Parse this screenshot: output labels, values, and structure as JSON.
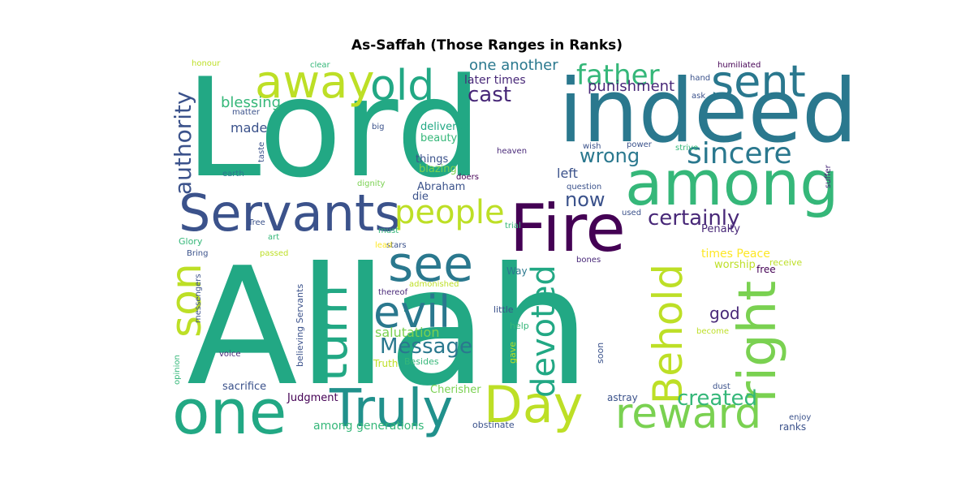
{
  "title": "As-Saffah (Those Ranges in Ranks)",
  "colors": {
    "background": "#ffffff",
    "palette": "viridis"
  },
  "words": [
    {
      "text": "Allah",
      "color": "#22a884"
    },
    {
      "text": "Lord",
      "color": "#22a884"
    },
    {
      "text": "indeed",
      "color": "#2a788e"
    },
    {
      "text": "among",
      "color": "#35b779"
    },
    {
      "text": "Servants",
      "color": "#3b528b"
    },
    {
      "text": "Fire",
      "color": "#440154"
    },
    {
      "text": "right",
      "color": "#7ad151"
    },
    {
      "text": "one",
      "color": "#22a884"
    },
    {
      "text": "Truly",
      "color": "#21918c"
    },
    {
      "text": "Day",
      "color": "#bddf26"
    },
    {
      "text": "reward",
      "color": "#7ad151"
    },
    {
      "text": "Behold",
      "color": "#bddf26"
    },
    {
      "text": "away",
      "color": "#bddf26"
    },
    {
      "text": "old",
      "color": "#22a884"
    },
    {
      "text": "sent",
      "color": "#2a788e"
    },
    {
      "text": "son",
      "color": "#bddf26"
    },
    {
      "text": "see",
      "color": "#2a788e"
    },
    {
      "text": "turn",
      "color": "#22a884"
    },
    {
      "text": "evil",
      "color": "#2a788e"
    },
    {
      "text": "people",
      "color": "#bddf26"
    },
    {
      "text": "devoted",
      "color": "#22a884"
    },
    {
      "text": "sincere",
      "color": "#2a788e"
    },
    {
      "text": "father",
      "color": "#35b779"
    },
    {
      "text": "authority",
      "color": "#3b528b"
    },
    {
      "text": "certainly",
      "color": "#482878"
    },
    {
      "text": "created",
      "color": "#35b779"
    },
    {
      "text": "Message",
      "color": "#2a788e"
    },
    {
      "text": "cast",
      "color": "#482878"
    },
    {
      "text": "wrong",
      "color": "#2a788e"
    },
    {
      "text": "now",
      "color": "#3b528b"
    },
    {
      "text": "one another",
      "color": "#2a788e"
    },
    {
      "text": "blessing",
      "color": "#35b779"
    },
    {
      "text": "god",
      "color": "#482878"
    },
    {
      "text": "punishment",
      "color": "#482878"
    },
    {
      "text": "salutation",
      "color": "#7ad151"
    },
    {
      "text": "left",
      "color": "#3b528b"
    },
    {
      "text": "made",
      "color": "#3b528b"
    },
    {
      "text": "later times",
      "color": "#482878"
    },
    {
      "text": "delivered",
      "color": "#22a884"
    },
    {
      "text": "beauty",
      "color": "#35b779"
    },
    {
      "text": "things",
      "color": "#3b528b"
    },
    {
      "text": "blazing",
      "color": "#7ad151"
    },
    {
      "text": "Abraham",
      "color": "#3b528b"
    },
    {
      "text": "die",
      "color": "#3b528b"
    },
    {
      "text": "times Peace",
      "color": "#fde725"
    },
    {
      "text": "worship",
      "color": "#bddf26"
    },
    {
      "text": "free",
      "color": "#440154"
    },
    {
      "text": "receive",
      "color": "#bddf26"
    },
    {
      "text": "Penalty",
      "color": "#482878"
    },
    {
      "text": "among generations",
      "color": "#35b779"
    },
    {
      "text": "Judgment",
      "color": "#440154"
    },
    {
      "text": "Cherisher",
      "color": "#7ad151"
    },
    {
      "text": "sacrifice",
      "color": "#3b528b"
    },
    {
      "text": "astray",
      "color": "#3b528b"
    },
    {
      "text": "ranks",
      "color": "#3b528b"
    },
    {
      "text": "obstinate",
      "color": "#3b528b"
    },
    {
      "text": "Truth",
      "color": "#bddf26"
    },
    {
      "text": "Besides",
      "color": "#35b779"
    },
    {
      "text": "gave",
      "color": "#bddf26"
    },
    {
      "text": "help",
      "color": "#35b779"
    },
    {
      "text": "soon",
      "color": "#3b528b"
    },
    {
      "text": "little",
      "color": "#3b528b"
    },
    {
      "text": "Way",
      "color": "#2a788e"
    },
    {
      "text": "bones",
      "color": "#482878"
    },
    {
      "text": "thereof",
      "color": "#482878"
    },
    {
      "text": "admonished",
      "color": "#bddf26"
    },
    {
      "text": "stars",
      "color": "#3b528b"
    },
    {
      "text": "lead",
      "color": "#fde725"
    },
    {
      "text": "trial",
      "color": "#35b779"
    },
    {
      "text": "must",
      "color": "#35b779"
    },
    {
      "text": "used",
      "color": "#3b528b"
    },
    {
      "text": "question",
      "color": "#3b528b"
    },
    {
      "text": "heaven",
      "color": "#482878"
    },
    {
      "text": "wish",
      "color": "#3b528b"
    },
    {
      "text": "power",
      "color": "#3b528b"
    },
    {
      "text": "strive",
      "color": "#35b779"
    },
    {
      "text": "suffer",
      "color": "#482878"
    },
    {
      "text": "ask",
      "color": "#3b528b"
    },
    {
      "text": "hand",
      "color": "#3b528b"
    },
    {
      "text": "humiliated",
      "color": "#440154"
    },
    {
      "text": "clear",
      "color": "#35b779"
    },
    {
      "text": "honour",
      "color": "#bddf26"
    },
    {
      "text": "matter",
      "color": "#3b528b"
    },
    {
      "text": "taste",
      "color": "#3b528b"
    },
    {
      "text": "big",
      "color": "#3b528b"
    },
    {
      "text": "earth",
      "color": "#2a788e"
    },
    {
      "text": "dignity",
      "color": "#7ad151"
    },
    {
      "text": "doers",
      "color": "#440154"
    },
    {
      "text": "Tree",
      "color": "#3b528b"
    },
    {
      "text": "art",
      "color": "#35b779"
    },
    {
      "text": "Glory",
      "color": "#35b779"
    },
    {
      "text": "Bring",
      "color": "#3b528b"
    },
    {
      "text": "passed",
      "color": "#bddf26"
    },
    {
      "text": "messengers",
      "color": "#3b528b"
    },
    {
      "text": "believing Servants",
      "color": "#3b528b"
    },
    {
      "text": "voice",
      "color": "#482878"
    },
    {
      "text": "opinion",
      "color": "#35b779"
    },
    {
      "text": "become",
      "color": "#bddf26"
    },
    {
      "text": "dust",
      "color": "#3b528b"
    },
    {
      "text": "enjoy",
      "color": "#3b528b"
    }
  ]
}
